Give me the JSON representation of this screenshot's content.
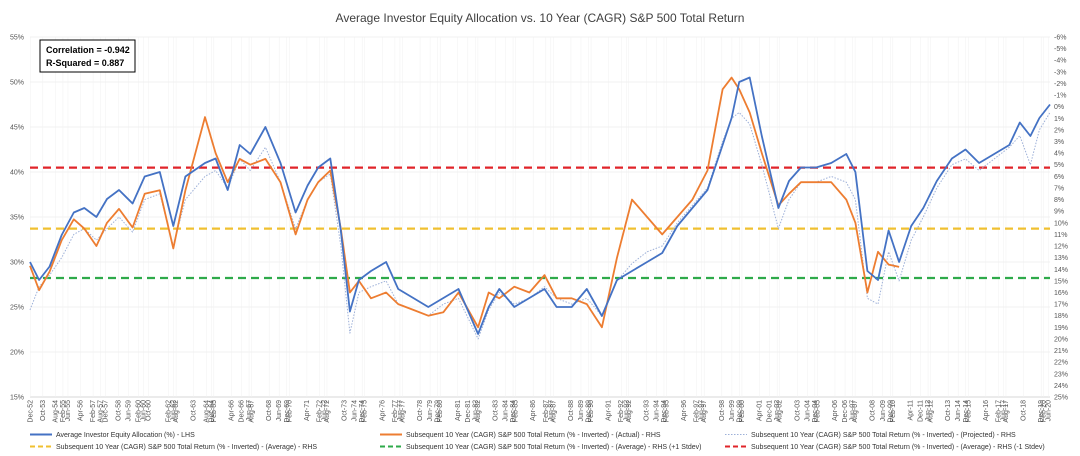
{
  "chart_data": {
    "type": "line",
    "title": "Average Investor Equity Allocation vs. 10 Year (CAGR) S&P 500 Total Return",
    "stats_box": {
      "correlation": "Correlation = -0.942",
      "r_squared": "R-Squared = 0.887"
    },
    "left_axis": {
      "ticks": [
        "55%",
        "50%",
        "45%",
        "40%",
        "35%",
        "30%",
        "25%",
        "20%",
        "15%"
      ],
      "ylim": [
        15,
        55
      ]
    },
    "right_axis": {
      "ticks": [
        "-6%",
        "-5%",
        "-4%",
        "-3%",
        "-2%",
        "-1%",
        "0%",
        "1%",
        "2%",
        "3%",
        "4%",
        "5%",
        "6%",
        "7%",
        "8%",
        "9%",
        "10%",
        "11%",
        "12%",
        "13%",
        "14%",
        "15%",
        "16%",
        "17%",
        "18%",
        "19%",
        "20%",
        "21%",
        "22%",
        "23%",
        "24%",
        "25%"
      ],
      "ylim_inverted": [
        -6,
        25
      ]
    },
    "x_tick_labels": [
      "Dec-52",
      "Aug-54",
      "Feb-57",
      "Jun-59",
      "Feb-62",
      "Aug-64",
      "Dec-66",
      "Jun-69",
      "Feb-72",
      "Jun-74",
      "Feb-77",
      "Jun-79",
      "Dec-81",
      "Jun-84",
      "Feb-87",
      "Jun-89",
      "Feb-92",
      "Jun-94",
      "Feb-97",
      "Jun-99",
      "Dec-01",
      "Jun-04",
      "Dec-06",
      "Jun-09",
      "Dec-11",
      "Jun-14",
      "Feb-17",
      "Jun-20",
      "Oct-53",
      "Apr-56",
      "Oct-58",
      "Oct-60",
      "Oct-63",
      "Apr-66",
      "Oct-68",
      "Apr-71",
      "Oct-73",
      "Apr-76",
      "Oct-78",
      "Apr-81",
      "Oct-83",
      "Apr-86",
      "Oct-88",
      "Apr-91",
      "Oct-93",
      "Apr-96",
      "Oct-98",
      "Apr-01",
      "Oct-03",
      "Apr-06",
      "Oct-08",
      "Apr-11",
      "Oct-13",
      "Apr-16",
      "Oct-18",
      "Jun-55",
      "Dec-57",
      "Jun-60",
      "Jun-62",
      "Dec-64",
      "Jun-67",
      "Dec-69",
      "Jun-72",
      "Dec-74",
      "Jun-77",
      "Dec-79",
      "Jun-82",
      "Dec-84",
      "Jun-87",
      "Dec-89",
      "Jun-92",
      "Dec-94",
      "Jun-97",
      "Dec-99",
      "Jun-02",
      "Dec-04",
      "Jun-07",
      "Dec-09",
      "Jun-12",
      "Dec-14",
      "Jun-17",
      "Dec-19",
      "Feb-55",
      "Aug-57",
      "Feb-60",
      "Aug-62",
      "Feb-65",
      "Aug-67",
      "Feb-70",
      "Aug-72",
      "Feb-75",
      "Aug-77",
      "Feb-80",
      "Aug-82",
      "Feb-85",
      "Aug-87",
      "Feb-90",
      "Aug-92",
      "Feb-95",
      "Aug-97",
      "Feb-00",
      "Aug-02",
      "Feb-05",
      "Aug-07",
      "Feb-10",
      "Aug-12",
      "Feb-15",
      "Aug-17",
      "Feb-20"
    ],
    "x_range": [
      1952.9,
      2020.5
    ],
    "reference_lines": [
      {
        "name": "Subsequent 10 Year (CAGR) S&P 500 Total Return (% - Inverted) - (Average) - RHS",
        "value_rhs": 10.5,
        "color": "#F0C030"
      },
      {
        "name": "Subsequent 10 Year (CAGR) S&P 500 Total Return (% - Inverted) - (Average) - RHS (+1 Stdev)",
        "value_rhs": 14.75,
        "color": "#2EAA4A"
      },
      {
        "name": "Subsequent 10 Year (CAGR) S&P 500 Total Return (% - Inverted) - (Average) - RHS (-1 Stdev)",
        "value_rhs": 5.25,
        "color": "#E0242A"
      }
    ],
    "series": [
      {
        "name": "Average Investor Equity Allocation (%) - LHS",
        "axis": "left",
        "color": "#4472C4",
        "x": [
          1952.9,
          1953.5,
          1954.2,
          1955,
          1955.8,
          1956.5,
          1957.3,
          1958,
          1958.8,
          1959.7,
          1960.5,
          1961.5,
          1962.4,
          1963.2,
          1964.5,
          1965.2,
          1966,
          1966.8,
          1967.5,
          1968.5,
          1969.5,
          1970.5,
          1971.3,
          1972,
          1972.8,
          1973.5,
          1974.1,
          1974.7,
          1975.5,
          1976.5,
          1977.3,
          1978.3,
          1979.3,
          1980.3,
          1981.3,
          1982.6,
          1983.3,
          1984,
          1985,
          1986,
          1987,
          1987.8,
          1988.8,
          1989.8,
          1990.8,
          1991.8,
          1992.8,
          1993.8,
          1994.8,
          1995.8,
          1996.8,
          1997.8,
          1998.8,
          1999.4,
          1999.9,
          2000.6,
          2001.4,
          2002.5,
          2003.2,
          2004,
          2005,
          2006,
          2007,
          2007.6,
          2008.4,
          2009.1,
          2009.8,
          2010.5,
          2011.3,
          2012.1,
          2013,
          2014,
          2014.9,
          2015.8,
          2016.8,
          2017.8,
          2018.5,
          2019.2,
          2019.8,
          2020.5
        ],
        "values": [
          30,
          28,
          29.5,
          33,
          35.5,
          36,
          35,
          37,
          38,
          36.5,
          39.5,
          40,
          34,
          39.5,
          41,
          41.5,
          38,
          43,
          42,
          45,
          41,
          35.5,
          38.5,
          40.5,
          41.5,
          33.5,
          24.5,
          28,
          29,
          30,
          27,
          26,
          25,
          26,
          27,
          22,
          25,
          27,
          25,
          26,
          27,
          25,
          25,
          27,
          24,
          28,
          29,
          30,
          31,
          34,
          36,
          38,
          43,
          46,
          50,
          50.5,
          44,
          36,
          39,
          40.5,
          40.5,
          41,
          42,
          40,
          29,
          28,
          33.5,
          30,
          34,
          36,
          39,
          41.5,
          42.5,
          41,
          42,
          43,
          45.5,
          44,
          46,
          47.5
        ]
      },
      {
        "name": "Subsequent 10 Year (CAGR) S&P 500 Total Return (% - Inverted) - (Actual) - RHS",
        "axis": "right_inverted",
        "color": "#ED7D31",
        "x": [
          1952.9,
          1953.5,
          1954.2,
          1955,
          1955.8,
          1956.5,
          1957.3,
          1958,
          1958.8,
          1959.7,
          1960.5,
          1961.5,
          1962.4,
          1963.2,
          1964.5,
          1965.2,
          1966,
          1966.8,
          1967.5,
          1968.5,
          1969.5,
          1970.5,
          1971.3,
          1972,
          1972.8,
          1973.5,
          1974.1,
          1974.7,
          1975.5,
          1976.5,
          1977.3,
          1978.3,
          1979.3,
          1980.3,
          1981.3,
          1982.6,
          1983.3,
          1984,
          1985,
          1986,
          1987,
          1987.8,
          1988.8,
          1989.8,
          1990.8,
          1991.8,
          1992.8,
          1993.8,
          1994.8,
          1995.8,
          1996.8,
          1997.8,
          1998.8,
          1999.4,
          1999.9,
          2000.6,
          2001.4,
          2002.5,
          2003.2,
          2004,
          2005,
          2006,
          2007,
          2007.6,
          2008.4,
          2009.1,
          2009.8,
          2010.5
        ],
        "values": [
          13.7,
          15.8,
          14.2,
          11.5,
          9.7,
          10.5,
          12,
          10,
          8.8,
          10.4,
          7.5,
          7.2,
          12.2,
          7.2,
          0.9,
          4,
          6.5,
          4.5,
          5,
          4.5,
          6.5,
          11,
          8,
          6.5,
          5.5,
          10.5,
          16,
          15,
          16.5,
          16,
          17,
          17.5,
          18,
          17.7,
          16,
          19,
          16,
          16.5,
          15.5,
          16,
          14.5,
          16.5,
          16.5,
          17,
          19,
          13,
          8,
          9.5,
          11,
          9.5,
          8,
          5.5,
          -1.5,
          -2.5,
          -1.5,
          0.5,
          4,
          8.5,
          7.5,
          6.5,
          6.5,
          6.5,
          8,
          10,
          16,
          12.5,
          13.6,
          13.8
        ]
      },
      {
        "name": "Subsequent 10 Year (CAGR) S&P 500 Total Return (% - Inverted) - (Projected) - RHS",
        "axis": "right_inverted",
        "color": "#9DB0D8",
        "x": [
          1952.9,
          1953.5,
          1954.2,
          1955,
          1955.8,
          1956.5,
          1957.3,
          1958,
          1958.8,
          1959.7,
          1960.5,
          1961.5,
          1962.4,
          1963.2,
          1964.5,
          1965.2,
          1966,
          1966.8,
          1967.5,
          1968.5,
          1969.5,
          1970.5,
          1971.3,
          1972,
          1972.8,
          1973.5,
          1974.1,
          1974.7,
          1975.5,
          1976.5,
          1977.3,
          1978.3,
          1979.3,
          1980.3,
          1981.3,
          1982.6,
          1983.3,
          1984,
          1985,
          1986,
          1987,
          1987.8,
          1988.8,
          1989.8,
          1990.8,
          1991.8,
          1992.8,
          1993.8,
          1994.8,
          1995.8,
          1996.8,
          1997.8,
          1998.8,
          1999.4,
          1999.9,
          2000.6,
          2001.4,
          2002.5,
          2003.2,
          2004,
          2005,
          2006,
          2007,
          2007.6,
          2008.4,
          2009.1,
          2009.8,
          2010.5,
          2011.3,
          2012.1,
          2013,
          2014,
          2014.9,
          2015.8,
          2016.8,
          2017.8,
          2018.5,
          2019.2,
          2019.8,
          2020.5
        ],
        "values": [
          17.5,
          15.5,
          14.5,
          13,
          11,
          10.5,
          11.5,
          10.5,
          9.5,
          10.8,
          8,
          7.5,
          12,
          8,
          6,
          5.5,
          7,
          4.5,
          5.5,
          3.5,
          6.5,
          10.5,
          8,
          6.5,
          5.8,
          12,
          19.5,
          16,
          15.5,
          15,
          17,
          17.5,
          18,
          17,
          16.5,
          20,
          17.5,
          16,
          17,
          16.5,
          15.5,
          16.5,
          17,
          16.5,
          18,
          15,
          13.5,
          12.5,
          12,
          10,
          8.5,
          7,
          3,
          1,
          0.5,
          1.5,
          5,
          10.5,
          8,
          6.5,
          6.5,
          6,
          6.5,
          8,
          16.5,
          17,
          12.5,
          15,
          11.5,
          9.5,
          7,
          5,
          4.5,
          5.5,
          4.5,
          3.5,
          2.5,
          5,
          2,
          0.5
        ]
      }
    ],
    "legend": [
      "Average Investor Equity Allocation (%) - LHS",
      "Subsequent 10 Year (CAGR) S&P 500 Total Return (% - Inverted) - (Actual) - RHS",
      "Subsequent 10 Year (CAGR) S&P 500 Total Return (% - Inverted) - (Projected) - RHS",
      "Subsequent 10 Year (CAGR) S&P 500 Total Return (% - Inverted) - (Average) - RHS",
      "Subsequent 10 Year (CAGR) S&P 500 Total Return (% - Inverted) - (Average) - RHS (+1 Stdev)",
      "Subsequent 10 Year (CAGR) S&P 500 Total Return (% - Inverted) - (Average) - RHS (-1 Stdev)"
    ],
    "grid": true
  }
}
